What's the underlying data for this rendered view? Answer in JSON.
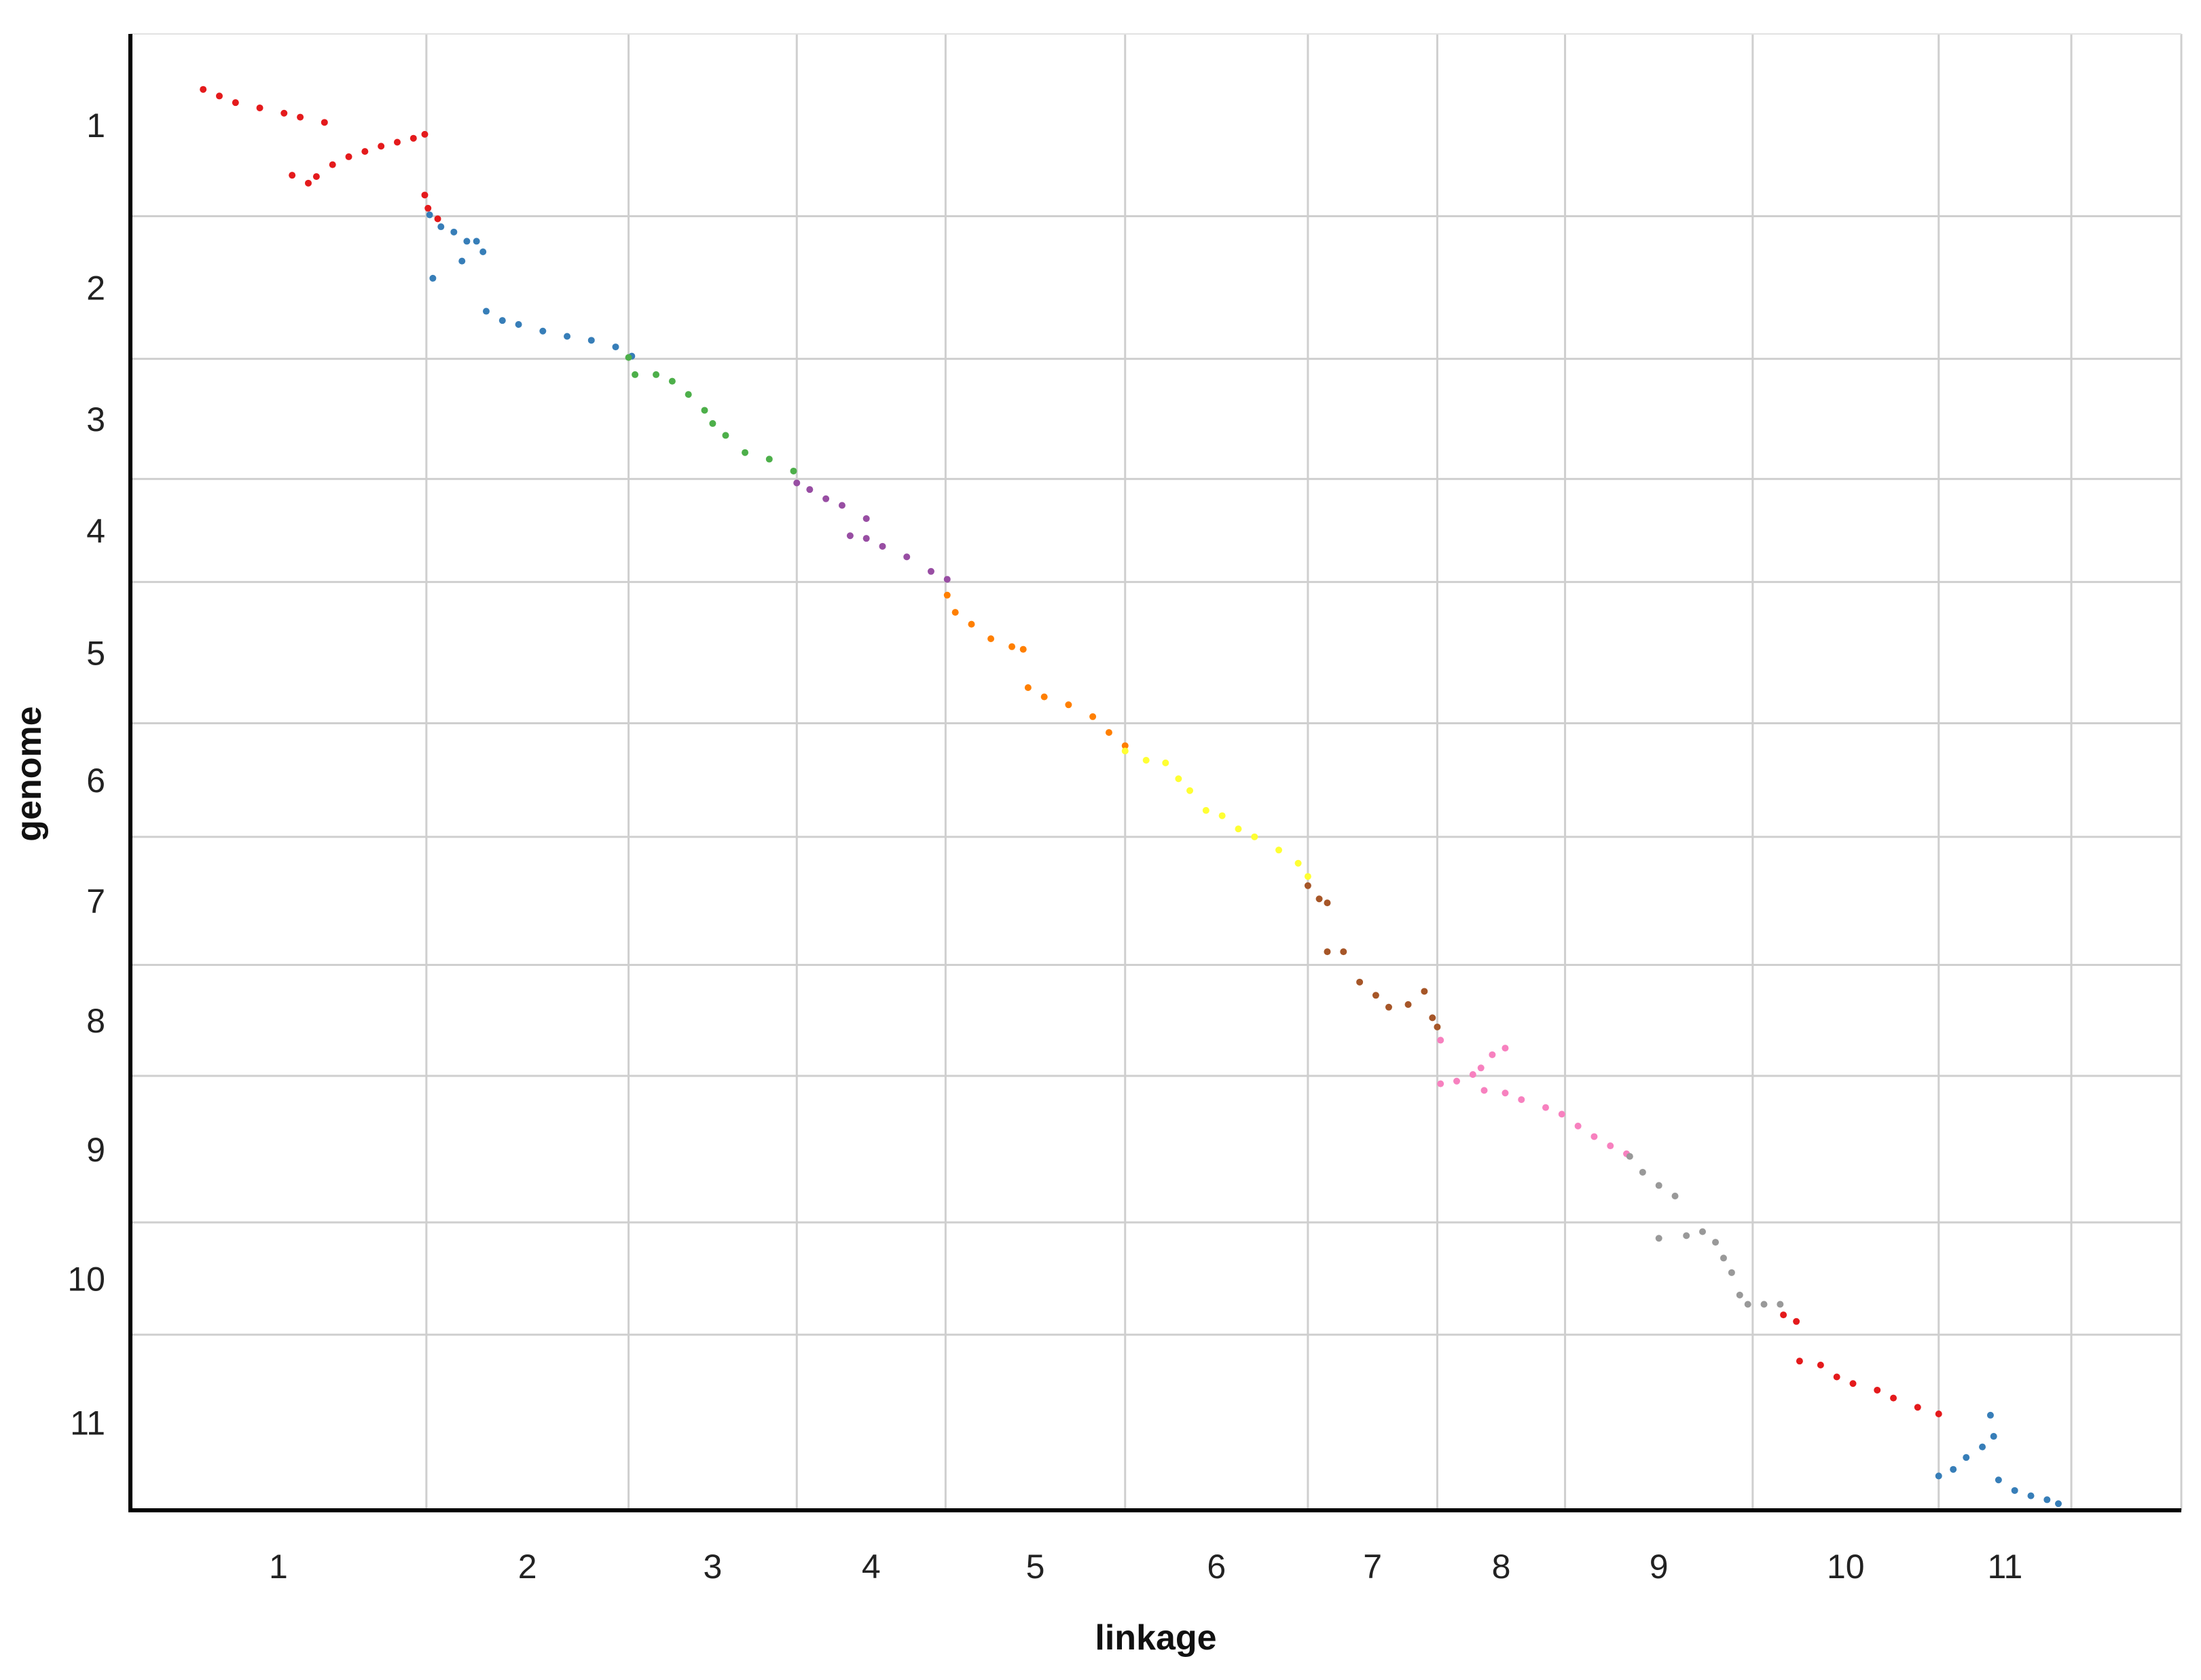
{
  "chart_data": {
    "type": "scatter",
    "title": "",
    "xlabel": "linkage",
    "ylabel": "genome",
    "x_tick_labels": [
      "1",
      "2",
      "3",
      "4",
      "5",
      "6",
      "7",
      "8",
      "9",
      "10",
      "11"
    ],
    "y_tick_labels": [
      "1",
      "2",
      "3",
      "4",
      "5",
      "6",
      "7",
      "8",
      "9",
      "10",
      "11"
    ],
    "y_inverted": true,
    "grid": true,
    "legend": "none",
    "x_group_boundaries": [
      0,
      1.83,
      3.08,
      4.12,
      5.04,
      6.15,
      7.28,
      8.08,
      8.87,
      10.03,
      11.18,
      12.0,
      12.68
    ],
    "y_group_boundaries": [
      0,
      1.38,
      2.46,
      3.37,
      4.15,
      5.22,
      6.08,
      7.05,
      7.89,
      9.0,
      9.85,
      11.18
    ],
    "x_range": [
      0,
      12.68
    ],
    "y_range": [
      0,
      11.18
    ],
    "series": [
      {
        "name": "1",
        "color": "#e41a1c",
        "points": [
          [
            0.45,
            0.42
          ],
          [
            0.55,
            0.47
          ],
          [
            0.65,
            0.52
          ],
          [
            0.8,
            0.56
          ],
          [
            0.95,
            0.6
          ],
          [
            1.05,
            0.63
          ],
          [
            1.2,
            0.67
          ],
          [
            1.0,
            1.07
          ],
          [
            1.1,
            1.13
          ],
          [
            1.15,
            1.08
          ],
          [
            1.25,
            0.99
          ],
          [
            1.35,
            0.93
          ],
          [
            1.45,
            0.89
          ],
          [
            1.55,
            0.85
          ],
          [
            1.65,
            0.82
          ],
          [
            1.75,
            0.79
          ],
          [
            1.82,
            0.76
          ],
          [
            1.82,
            1.22
          ],
          [
            1.84,
            1.32
          ],
          [
            1.9,
            1.4
          ]
        ]
      },
      {
        "name": "2",
        "color": "#377eb8",
        "points": [
          [
            1.85,
            1.37
          ],
          [
            1.92,
            1.46
          ],
          [
            2.0,
            1.5
          ],
          [
            2.08,
            1.57
          ],
          [
            2.14,
            1.57
          ],
          [
            2.18,
            1.65
          ],
          [
            2.05,
            1.72
          ],
          [
            1.87,
            1.85
          ],
          [
            2.2,
            2.1
          ],
          [
            2.3,
            2.17
          ],
          [
            2.4,
            2.2
          ],
          [
            2.55,
            2.25
          ],
          [
            2.7,
            2.29
          ],
          [
            2.85,
            2.32
          ],
          [
            3.0,
            2.37
          ],
          [
            3.1,
            2.44
          ]
        ]
      },
      {
        "name": "3",
        "color": "#4daf4a",
        "points": [
          [
            3.08,
            2.45
          ],
          [
            3.12,
            2.58
          ],
          [
            3.25,
            2.58
          ],
          [
            3.35,
            2.63
          ],
          [
            3.45,
            2.73
          ],
          [
            3.55,
            2.85
          ],
          [
            3.6,
            2.95
          ],
          [
            3.68,
            3.04
          ],
          [
            3.8,
            3.17
          ],
          [
            3.95,
            3.22
          ],
          [
            4.1,
            3.31
          ]
        ]
      },
      {
        "name": "4",
        "color": "#984ea3",
        "points": [
          [
            4.12,
            3.4
          ],
          [
            4.2,
            3.45
          ],
          [
            4.3,
            3.52
          ],
          [
            4.4,
            3.57
          ],
          [
            4.55,
            3.67
          ],
          [
            4.45,
            3.8
          ],
          [
            4.55,
            3.82
          ],
          [
            4.65,
            3.88
          ],
          [
            4.8,
            3.96
          ],
          [
            4.95,
            4.07
          ],
          [
            5.05,
            4.13
          ]
        ]
      },
      {
        "name": "5",
        "color": "#ff7f00",
        "points": [
          [
            5.05,
            4.25
          ],
          [
            5.1,
            4.38
          ],
          [
            5.2,
            4.47
          ],
          [
            5.32,
            4.58
          ],
          [
            5.45,
            4.64
          ],
          [
            5.52,
            4.66
          ],
          [
            5.55,
            4.95
          ],
          [
            5.65,
            5.02
          ],
          [
            5.8,
            5.08
          ],
          [
            5.95,
            5.17
          ],
          [
            6.05,
            5.29
          ],
          [
            6.15,
            5.39
          ]
        ]
      },
      {
        "name": "6",
        "color": "#ffff33",
        "points": [
          [
            6.15,
            5.43
          ],
          [
            6.28,
            5.5
          ],
          [
            6.4,
            5.52
          ],
          [
            6.48,
            5.64
          ],
          [
            6.55,
            5.73
          ],
          [
            6.65,
            5.88
          ],
          [
            6.75,
            5.92
          ],
          [
            6.85,
            6.02
          ],
          [
            6.95,
            6.08
          ],
          [
            7.1,
            6.18
          ],
          [
            7.22,
            6.28
          ],
          [
            7.28,
            6.38
          ]
        ]
      },
      {
        "name": "7",
        "color": "#a65628",
        "points": [
          [
            7.28,
            6.45
          ],
          [
            7.35,
            6.55
          ],
          [
            7.4,
            6.58
          ],
          [
            7.4,
            6.95
          ],
          [
            7.5,
            6.95
          ],
          [
            7.6,
            7.18
          ],
          [
            7.7,
            7.28
          ],
          [
            7.78,
            7.37
          ],
          [
            7.9,
            7.35
          ],
          [
            8.0,
            7.25
          ],
          [
            8.05,
            7.45
          ],
          [
            8.08,
            7.52
          ]
        ]
      },
      {
        "name": "8",
        "color": "#f781bf",
        "points": [
          [
            8.1,
            7.62
          ],
          [
            8.1,
            7.95
          ],
          [
            8.2,
            7.93
          ],
          [
            8.3,
            7.88
          ],
          [
            8.35,
            7.83
          ],
          [
            8.42,
            7.73
          ],
          [
            8.5,
            7.68
          ],
          [
            8.37,
            8.0
          ],
          [
            8.5,
            8.02
          ],
          [
            8.6,
            8.07
          ],
          [
            8.75,
            8.13
          ],
          [
            8.85,
            8.18
          ],
          [
            8.95,
            8.27
          ],
          [
            9.05,
            8.35
          ],
          [
            9.15,
            8.42
          ],
          [
            9.25,
            8.48
          ]
        ]
      },
      {
        "name": "9",
        "color": "#999999",
        "points": [
          [
            9.27,
            8.5
          ],
          [
            9.35,
            8.62
          ],
          [
            9.45,
            8.72
          ],
          [
            9.55,
            8.8
          ],
          [
            9.45,
            9.12
          ],
          [
            9.62,
            9.1
          ],
          [
            9.72,
            9.07
          ],
          [
            9.8,
            9.15
          ],
          [
            9.85,
            9.27
          ],
          [
            9.9,
            9.38
          ],
          [
            9.95,
            9.55
          ],
          [
            10.0,
            9.62
          ],
          [
            10.1,
            9.62
          ],
          [
            10.2,
            9.62
          ]
        ]
      },
      {
        "name": "10",
        "color": "#e41a1c",
        "points": [
          [
            10.22,
            9.7
          ],
          [
            10.3,
            9.75
          ],
          [
            10.32,
            10.05
          ],
          [
            10.45,
            10.08
          ],
          [
            10.55,
            10.17
          ],
          [
            10.65,
            10.22
          ],
          [
            10.8,
            10.27
          ],
          [
            10.9,
            10.33
          ],
          [
            11.05,
            10.4
          ],
          [
            11.18,
            10.45
          ]
        ]
      },
      {
        "name": "11",
        "color": "#377eb8",
        "points": [
          [
            11.18,
            10.92
          ],
          [
            11.27,
            10.87
          ],
          [
            11.35,
            10.78
          ],
          [
            11.45,
            10.7
          ],
          [
            11.52,
            10.62
          ],
          [
            11.5,
            10.46
          ],
          [
            11.55,
            10.95
          ],
          [
            11.65,
            11.03
          ],
          [
            11.75,
            11.07
          ],
          [
            11.85,
            11.1
          ],
          [
            11.92,
            11.13
          ]
        ]
      }
    ]
  }
}
